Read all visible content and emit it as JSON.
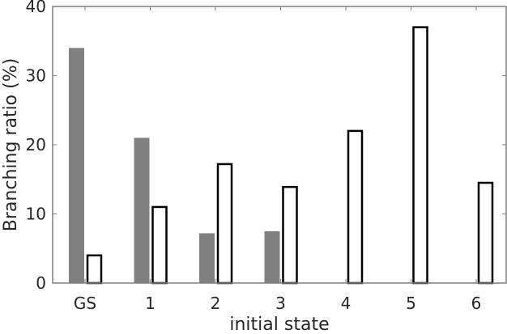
{
  "chart_data": {
    "type": "bar",
    "title": "",
    "xlabel": "initial state",
    "ylabel": "Branching ratio (%)",
    "categories": [
      "GS",
      "1",
      "2",
      "3",
      "4",
      "5",
      "6"
    ],
    "series": [
      {
        "name": "series-1 (filled gray)",
        "color": "#808080",
        "style": "filled",
        "values": [
          34,
          21,
          7.2,
          7.5,
          0,
          0,
          0
        ]
      },
      {
        "name": "series-2 (open black outline)",
        "color": "#000000",
        "style": "outline",
        "values": [
          4,
          11,
          17.2,
          13.9,
          22,
          37,
          14.5
        ]
      }
    ],
    "ylim": [
      0,
      40
    ],
    "yticks": [
      0,
      10,
      20,
      30,
      40
    ],
    "grid": false,
    "legend": "none"
  },
  "axes": {
    "xlabel": "initial state",
    "ylabel": "Branching ratio (%)",
    "ytick_labels": [
      "0",
      "10",
      "20",
      "30",
      "40"
    ],
    "xtick_labels": [
      "GS",
      "1",
      "2",
      "3",
      "4",
      "5",
      "6"
    ]
  }
}
